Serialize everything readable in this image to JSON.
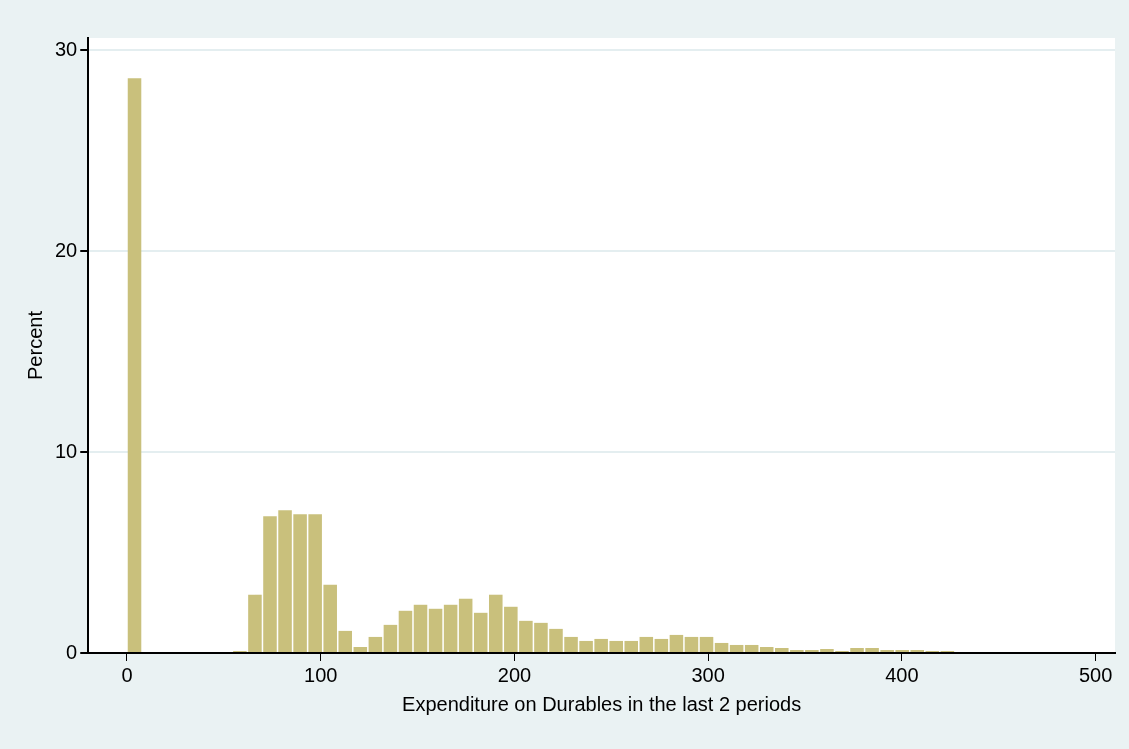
{
  "chart_data": {
    "type": "histogram",
    "xlabel": "Expenditure on Durables in the last 2 periods",
    "ylabel": "Percent",
    "color": "#c9c07c",
    "bins": [
      0,
      7.77,
      15.54,
      23.31,
      31.08,
      38.85,
      46.62,
      54.39,
      62.16,
      69.93,
      77.7,
      85.47,
      93.24,
      101.01,
      108.78,
      116.55,
      124.32,
      132.09,
      139.86,
      147.63,
      155.4,
      163.17,
      170.94,
      178.71,
      186.48,
      194.25,
      202.02,
      209.79,
      217.56,
      225.33,
      233.1,
      240.87,
      248.64,
      256.41,
      264.18,
      271.95,
      279.72,
      287.49,
      295.26,
      303.03,
      310.8,
      318.57,
      326.34,
      334.11,
      341.88,
      349.65,
      357.42,
      365.19,
      372.96,
      380.73,
      388.5,
      396.27,
      404.04,
      411.81,
      419.58,
      427.35,
      435.12,
      442.89,
      450.66,
      458.43
    ],
    "values": [
      28.6,
      0,
      0,
      0,
      0,
      0,
      0,
      0.1,
      2.9,
      6.8,
      7.1,
      6.9,
      6.9,
      3.4,
      1.1,
      0.3,
      0.8,
      1.4,
      2.1,
      2.4,
      2.2,
      2.4,
      2.7,
      2,
      2.9,
      2.3,
      1.6,
      1.5,
      1.2,
      0.8,
      0.6,
      0.7,
      0.6,
      0.6,
      0.8,
      0.7,
      0.9,
      0.8,
      0.8,
      0.5,
      0.4,
      0.4,
      0.3,
      0.25,
      0.15,
      0.15,
      0.2,
      0.1,
      0.25,
      0.25,
      0.15,
      0.15,
      0.15,
      0.1,
      0.1,
      0.05,
      0.05,
      0.05,
      0.05
    ],
    "xlim": [
      -20,
      510
    ],
    "xticks": [
      0,
      100,
      200,
      300,
      400,
      500
    ],
    "ylim": [
      0,
      30.6
    ],
    "yticks": [
      0,
      10,
      20,
      30
    ],
    "grid": "y",
    "legend": false
  }
}
